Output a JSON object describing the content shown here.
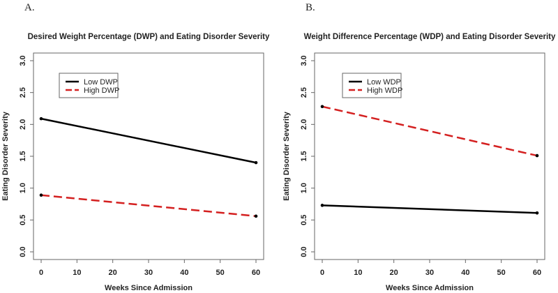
{
  "chart_data": [
    {
      "type": "line",
      "panel_label": "A.",
      "title": "Desired Weight Percentage (DWP) and Eating Disorder Severity",
      "xlabel": "Weeks Since Admission",
      "ylabel": "Eating Disorder Severity",
      "xlim": [
        0,
        60
      ],
      "ylim": [
        0,
        3
      ],
      "xticks": [
        "0",
        "10",
        "20",
        "30",
        "40",
        "50",
        "60"
      ],
      "yticks": [
        "0.0",
        "0.5",
        "1.0",
        "1.5",
        "2.0",
        "2.5",
        "3.0"
      ],
      "legend_position": "top-left",
      "x": [
        0,
        60
      ],
      "series": [
        {
          "name": "Low DWP",
          "values": [
            2.09,
            1.4
          ],
          "color": "#000000",
          "dash": false
        },
        {
          "name": "High DWP",
          "values": [
            0.89,
            0.56
          ],
          "color": "#d42020",
          "dash": true
        }
      ]
    },
    {
      "type": "line",
      "panel_label": "B.",
      "title": "Weight Difference Percentage (WDP) and Eating Disorder Severity",
      "xlabel": "Weeks Since Admission",
      "ylabel": "Eating Disorder Severity",
      "xlim": [
        0,
        60
      ],
      "ylim": [
        0,
        3
      ],
      "xticks": [
        "0",
        "10",
        "20",
        "30",
        "40",
        "50",
        "60"
      ],
      "yticks": [
        "0.0",
        "0.5",
        "1.0",
        "1.5",
        "2.0",
        "2.5",
        "3.0"
      ],
      "legend_position": "top-left",
      "x": [
        0,
        60
      ],
      "series": [
        {
          "name": "Low WDP",
          "values": [
            0.73,
            0.61
          ],
          "color": "#000000",
          "dash": false
        },
        {
          "name": "High WDP",
          "values": [
            2.28,
            1.51
          ],
          "color": "#d42020",
          "dash": true
        }
      ]
    }
  ]
}
